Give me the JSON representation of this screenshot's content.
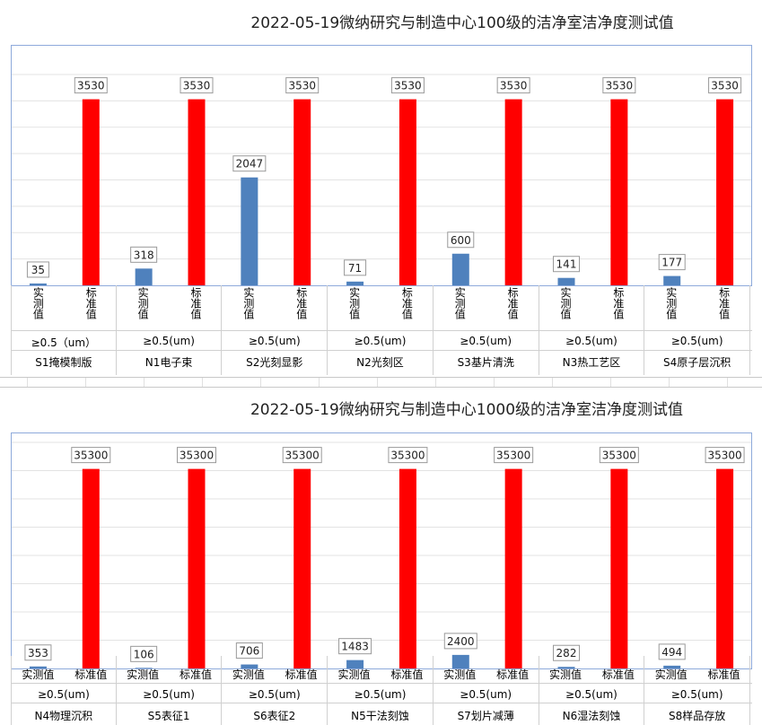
{
  "charts": [
    {
      "title": "2022-05-19微纳研究与制造中心100级的洁净室洁净度测试值",
      "sub_labels": [
        "实测值",
        "标准值"
      ],
      "colors": {
        "measured": "#4f81bd",
        "standard": "#ff0000"
      },
      "groups": [
        {
          "spec": "≥0.5（um）",
          "name": "S1掩模制版"
        },
        {
          "spec": "≥0.5(um)",
          "name": "N1电子束"
        },
        {
          "spec": "≥0.5(um)",
          "name": "S2光刻显影"
        },
        {
          "spec": "≥0.5(um)",
          "name": "N2光刻区"
        },
        {
          "spec": "≥0.5(um)",
          "name": "S3基片清洗"
        },
        {
          "spec": "≥0.5(um)",
          "name": "N3热工艺区"
        },
        {
          "spec": "≥0.5(um)",
          "name": "S4原子层沉积"
        }
      ]
    },
    {
      "title": "2022-05-19微纳研究与制造中心1000级的洁净室洁净度测试值",
      "sub_labels": [
        "实测值",
        "标准值"
      ],
      "colors": {
        "measured": "#4f81bd",
        "standard": "#ff0000"
      },
      "groups": [
        {
          "spec": "≥0.5(um)",
          "name": "N4物理沉积"
        },
        {
          "spec": "≥0.5(um)",
          "name": "S5表征1"
        },
        {
          "spec": "≥0.5(um)",
          "name": "S6表征2"
        },
        {
          "spec": "≥0.5(um)",
          "name": "N5干法刻蚀"
        },
        {
          "spec": "≥0.5(um)",
          "name": "S7划片减薄"
        },
        {
          "spec": "≥0.5(um)",
          "name": "N6湿法刻蚀"
        },
        {
          "spec": "≥0.5(um)",
          "name": "S8样品存放"
        }
      ]
    }
  ],
  "chart_data": [
    {
      "type": "bar",
      "title": "2022-05-19微纳研究与制造中心100级的洁净室洁净度测试值",
      "categories": [
        "S1掩模制版",
        "N1电子束",
        "S2光刻显影",
        "N2光刻区",
        "S3基片清洗",
        "N3热工艺区",
        "S4原子层沉积"
      ],
      "series": [
        {
          "name": "实测值",
          "values": [
            35,
            318,
            2047,
            71,
            600,
            141,
            177
          ]
        },
        {
          "name": "标准值",
          "values": [
            3530,
            3530,
            3530,
            3530,
            3530,
            3530,
            3530
          ]
        }
      ],
      "ylim": [
        0,
        4000
      ],
      "grid": true
    },
    {
      "type": "bar",
      "title": "2022-05-19微纳研究与制造中心1000级的洁净室洁净度测试值",
      "categories": [
        "N4物理沉积",
        "S5表征1",
        "S6表征2",
        "N5干法刻蚀",
        "S7划片减薄",
        "N6湿法刻蚀",
        "S8样品存放"
      ],
      "series": [
        {
          "name": "实测值",
          "values": [
            353,
            106,
            706,
            1483,
            2400,
            282,
            494
          ]
        },
        {
          "name": "标准值",
          "values": [
            35300,
            35300,
            35300,
            35300,
            35300,
            35300,
            35300
          ]
        }
      ],
      "ylim": [
        0,
        40000
      ],
      "grid": true
    }
  ]
}
